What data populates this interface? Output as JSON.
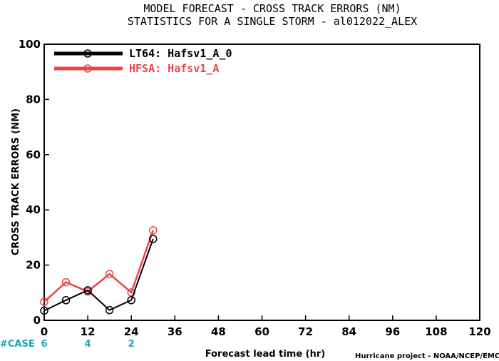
{
  "chart_data": {
    "type": "line",
    "title": "MODEL FORECAST - CROSS TRACK ERRORS (NM)",
    "subtitle": "STATISTICS FOR A SINGLE STORM - al012022_ALEX",
    "xlabel": "Forecast lead time (hr)",
    "ylabel": "CROSS TRACK ERRORS (NM)",
    "xlim": [
      0,
      120
    ],
    "ylim": [
      0,
      100
    ],
    "x_ticks": [
      0,
      12,
      24,
      36,
      48,
      60,
      72,
      84,
      96,
      108,
      120
    ],
    "y_ticks": [
      0,
      20,
      40,
      60,
      80,
      100
    ],
    "legend_position": "top-left",
    "series": [
      {
        "name": "LT64: Hafsv1_A_0",
        "color": "#000000",
        "x": [
          0,
          6,
          12,
          18,
          24,
          30
        ],
        "values": [
          3.5,
          7.3,
          10.9,
          3.7,
          7.3,
          29.5
        ]
      },
      {
        "name": "HFSA: Hafsv1_A",
        "color": "#ee4444",
        "x": [
          0,
          6,
          12,
          18,
          24,
          30
        ],
        "values": [
          6.7,
          13.8,
          10.4,
          16.8,
          10.1,
          32.6
        ]
      }
    ],
    "case_label": "#CASE",
    "case_counts": [
      {
        "x": 0,
        "count": "6"
      },
      {
        "x": 12,
        "count": "4"
      },
      {
        "x": 24,
        "count": "2"
      }
    ],
    "credit": "Hurricane project - NOAA/NCEP/EMC"
  }
}
